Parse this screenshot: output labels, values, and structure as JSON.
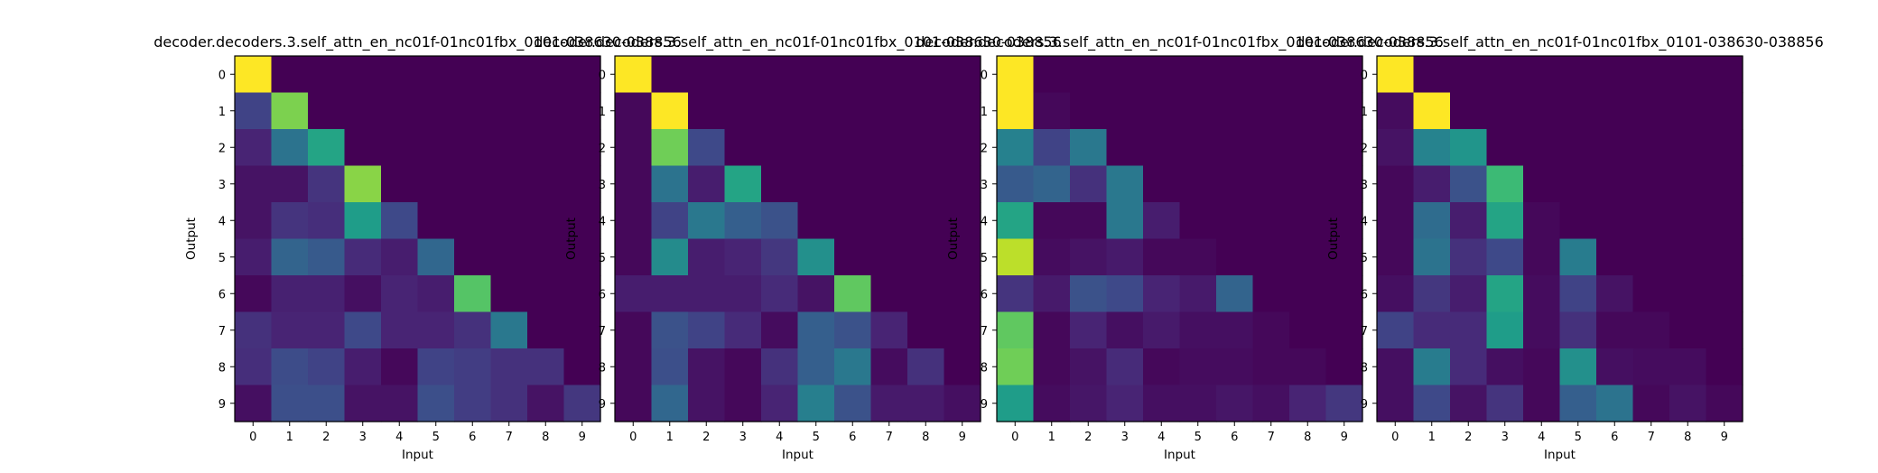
{
  "figure": {
    "background": "#ffffff",
    "colormap": "viridis"
  },
  "chart_data": [
    {
      "type": "heatmap",
      "title": "decoder.decoders.3.self_attn_en_nc01f-01nc01fbx_0101-038630-038856",
      "xlabel": "Input",
      "ylabel": "Output",
      "x_ticks": [
        "0",
        "1",
        "2",
        "3",
        "4",
        "5",
        "6",
        "7",
        "8",
        "9"
      ],
      "y_ticks": [
        "0",
        "1",
        "2",
        "3",
        "4",
        "5",
        "6",
        "7",
        "8",
        "9"
      ],
      "values": [
        [
          1.0,
          0,
          0,
          0,
          0,
          0,
          0,
          0,
          0,
          0
        ],
        [
          0.2,
          0.8,
          0,
          0,
          0,
          0,
          0,
          0,
          0,
          0
        ],
        [
          0.1,
          0.38,
          0.58,
          0,
          0,
          0,
          0,
          0,
          0,
          0
        ],
        [
          0.05,
          0.05,
          0.15,
          0.82,
          0,
          0,
          0,
          0,
          0,
          0
        ],
        [
          0.05,
          0.15,
          0.13,
          0.55,
          0.22,
          0,
          0,
          0,
          0,
          0
        ],
        [
          0.08,
          0.32,
          0.28,
          0.12,
          0.08,
          0.33,
          0,
          0,
          0,
          0
        ],
        [
          0.02,
          0.09,
          0.09,
          0.04,
          0.1,
          0.08,
          0.73,
          0,
          0,
          0
        ],
        [
          0.14,
          0.1,
          0.1,
          0.22,
          0.1,
          0.1,
          0.14,
          0.4,
          0,
          0
        ],
        [
          0.13,
          0.23,
          0.2,
          0.08,
          0.02,
          0.2,
          0.18,
          0.14,
          0.14,
          0
        ],
        [
          0.04,
          0.24,
          0.24,
          0.05,
          0.05,
          0.24,
          0.18,
          0.14,
          0.05,
          0.16
        ]
      ]
    },
    {
      "type": "heatmap",
      "title": "decoder.decoders.3.self_attn_en_nc01f-01nc01fbx_0101-038630-038856",
      "xlabel": "Input",
      "ylabel": "Output",
      "x_ticks": [
        "0",
        "1",
        "2",
        "3",
        "4",
        "5",
        "6",
        "7",
        "8",
        "9"
      ],
      "y_ticks": [
        "0",
        "1",
        "2",
        "3",
        "4",
        "5",
        "6",
        "7",
        "8",
        "9"
      ],
      "values": [
        [
          1.0,
          0,
          0,
          0,
          0,
          0,
          0,
          0,
          0,
          0
        ],
        [
          0.02,
          1.0,
          0,
          0,
          0,
          0,
          0,
          0,
          0,
          0
        ],
        [
          0.02,
          0.78,
          0.22,
          0,
          0,
          0,
          0,
          0,
          0,
          0
        ],
        [
          0.02,
          0.38,
          0.08,
          0.58,
          0,
          0,
          0,
          0,
          0,
          0
        ],
        [
          0.02,
          0.2,
          0.4,
          0.3,
          0.25,
          0,
          0,
          0,
          0,
          0
        ],
        [
          0.02,
          0.48,
          0.08,
          0.1,
          0.16,
          0.5,
          0,
          0,
          0,
          0
        ],
        [
          0.08,
          0.08,
          0.08,
          0.08,
          0.12,
          0.05,
          0.75,
          0,
          0,
          0
        ],
        [
          0.02,
          0.25,
          0.2,
          0.12,
          0.03,
          0.3,
          0.25,
          0.1,
          0,
          0
        ],
        [
          0.02,
          0.24,
          0.05,
          0.02,
          0.14,
          0.3,
          0.4,
          0.03,
          0.14,
          0
        ],
        [
          0.02,
          0.33,
          0.05,
          0.02,
          0.1,
          0.43,
          0.25,
          0.07,
          0.07,
          0.04
        ]
      ]
    },
    {
      "type": "heatmap",
      "title": "decoder.decoders.3.self_attn_en_nc01f-01nc01fbx_0101-038630-038856",
      "xlabel": "Input",
      "ylabel": "Output",
      "x_ticks": [
        "0",
        "1",
        "2",
        "3",
        "4",
        "5",
        "6",
        "7",
        "8",
        "9"
      ],
      "y_ticks": [
        "0",
        "1",
        "2",
        "3",
        "4",
        "5",
        "6",
        "7",
        "8",
        "9"
      ],
      "values": [
        [
          1.0,
          0,
          0,
          0,
          0,
          0,
          0,
          0,
          0,
          0
        ],
        [
          1.0,
          0.02,
          0,
          0,
          0,
          0,
          0,
          0,
          0,
          0
        ],
        [
          0.44,
          0.2,
          0.4,
          0,
          0,
          0,
          0,
          0,
          0,
          0
        ],
        [
          0.28,
          0.32,
          0.14,
          0.4,
          0,
          0,
          0,
          0,
          0,
          0
        ],
        [
          0.58,
          0.02,
          0.02,
          0.4,
          0.08,
          0,
          0,
          0,
          0,
          0
        ],
        [
          0.9,
          0.03,
          0.05,
          0.07,
          0.02,
          0.02,
          0,
          0,
          0,
          0
        ],
        [
          0.15,
          0.07,
          0.25,
          0.22,
          0.1,
          0.07,
          0.32,
          0,
          0,
          0
        ],
        [
          0.75,
          0.02,
          0.1,
          0.04,
          0.07,
          0.04,
          0.04,
          0.02,
          0,
          0
        ],
        [
          0.78,
          0.02,
          0.05,
          0.12,
          0.02,
          0.03,
          0.03,
          0.02,
          0.02,
          0
        ],
        [
          0.55,
          0.03,
          0.06,
          0.1,
          0.04,
          0.04,
          0.06,
          0.04,
          0.1,
          0.16
        ]
      ]
    },
    {
      "type": "heatmap",
      "title": "decoder.decoders.3.self_attn_en_nc01f-01nc01fbx_0101-038630-038856",
      "xlabel": "Input",
      "ylabel": "Output",
      "x_ticks": [
        "0",
        "1",
        "2",
        "3",
        "4",
        "5",
        "6",
        "7",
        "8",
        "9"
      ],
      "y_ticks": [
        "0",
        "1",
        "2",
        "3",
        "4",
        "5",
        "6",
        "7",
        "8",
        "9"
      ],
      "values": [
        [
          1.0,
          0,
          0,
          0,
          0,
          0,
          0,
          0,
          0,
          0
        ],
        [
          0.03,
          1.0,
          0,
          0,
          0,
          0,
          0,
          0,
          0,
          0
        ],
        [
          0.05,
          0.45,
          0.52,
          0,
          0,
          0,
          0,
          0,
          0,
          0
        ],
        [
          0.02,
          0.08,
          0.25,
          0.68,
          0,
          0,
          0,
          0,
          0,
          0
        ],
        [
          0.02,
          0.35,
          0.08,
          0.58,
          0.02,
          0,
          0,
          0,
          0,
          0
        ],
        [
          0.02,
          0.38,
          0.14,
          0.22,
          0.02,
          0.42,
          0,
          0,
          0,
          0
        ],
        [
          0.04,
          0.16,
          0.08,
          0.58,
          0.03,
          0.2,
          0.05,
          0,
          0,
          0
        ],
        [
          0.2,
          0.12,
          0.12,
          0.55,
          0.03,
          0.14,
          0.02,
          0.02,
          0,
          0
        ],
        [
          0.04,
          0.42,
          0.12,
          0.04,
          0.02,
          0.5,
          0.04,
          0.03,
          0.03,
          0
        ],
        [
          0.04,
          0.22,
          0.05,
          0.15,
          0.02,
          0.3,
          0.38,
          0.02,
          0.05,
          0.02
        ]
      ]
    }
  ]
}
